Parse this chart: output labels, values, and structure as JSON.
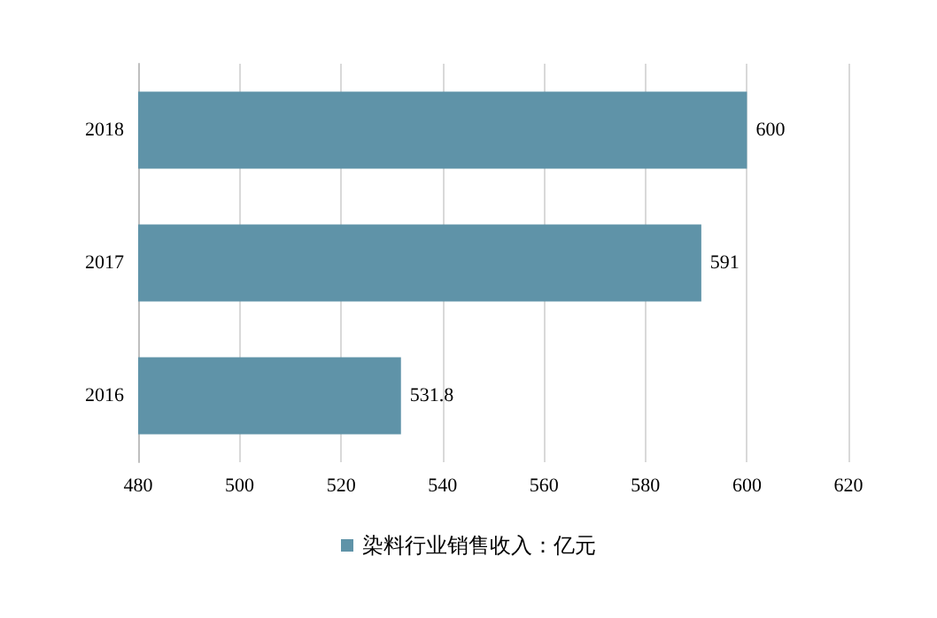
{
  "chart_data": {
    "type": "bar",
    "orientation": "horizontal",
    "categories": [
      "2018",
      "2017",
      "2016"
    ],
    "series": [
      {
        "name": "染料行业销售收入：亿元",
        "color": "#5f93a8",
        "values": [
          600,
          591,
          531.8
        ]
      }
    ],
    "xlim": [
      480,
      620
    ],
    "xticks": [
      480,
      500,
      520,
      540,
      560,
      580,
      600,
      620
    ],
    "grid": "x",
    "legend": "bottom",
    "data_labels": true
  }
}
